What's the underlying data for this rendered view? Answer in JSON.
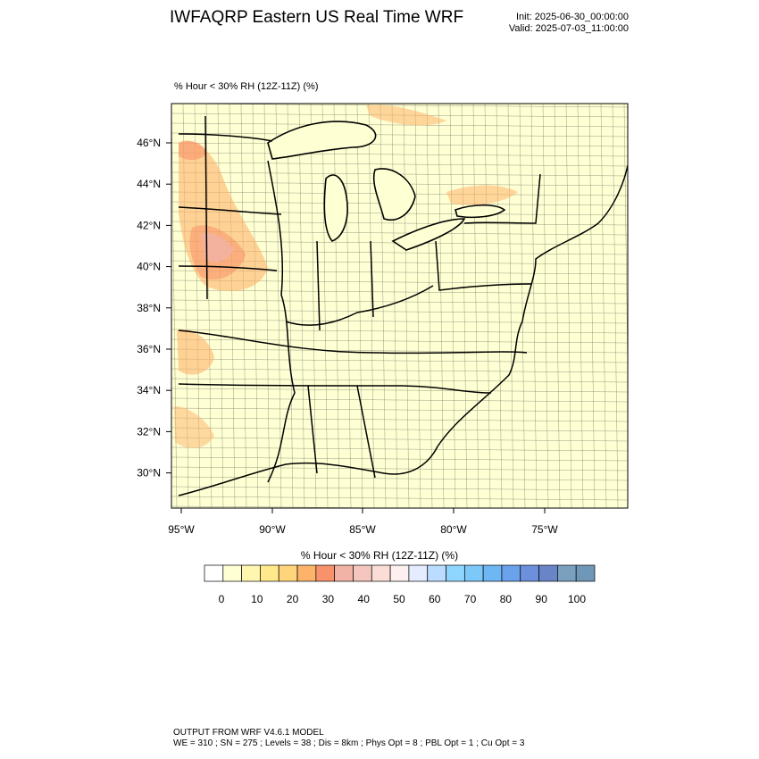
{
  "title": "IWFAQRP Eastern US Real Time WRF",
  "init_label": "Init: 2025-06-30_00:00:00",
  "valid_label": "Valid: 2025-07-03_11:00:00",
  "field_label": "% Hour < 30% RH (12Z-11Z)   (%)",
  "legend": {
    "title": "% Hour < 30% RH (12Z-11Z)  (%)",
    "tick_labels": [
      "0",
      "10",
      "20",
      "30",
      "40",
      "50",
      "60",
      "70",
      "80",
      "90",
      "100"
    ],
    "colors": [
      "#ffffff",
      "#ffffd4",
      "#fff6b0",
      "#ffe98c",
      "#ffd47a",
      "#fdb46a",
      "#f7926a",
      "#f1b3a6",
      "#f4c6bd",
      "#f9ddd6",
      "#fdf0ef",
      "#e5ecff",
      "#bcdcff",
      "#8fd6ff",
      "#7cc8f8",
      "#6fb6f4",
      "#6aa2ec",
      "#6c90dc",
      "#6a84c8",
      "#7aa0c0",
      "#6f98b8"
    ]
  },
  "lat_labels": [
    "46°N",
    "44°N",
    "42°N",
    "40°N",
    "38°N",
    "36°N",
    "34°N",
    "32°N",
    "30°N"
  ],
  "lon_labels": [
    "95°W",
    "90°W",
    "85°W",
    "80°W",
    "75°W"
  ],
  "map": {
    "land_color": "#ffffd4",
    "border_color": "#000000"
  },
  "footer_line1": "OUTPUT FROM WRF V4.6.1 MODEL",
  "footer_line2": "WE = 310 ; SN = 275 ; Levels = 38 ; Dis = 8km ; Phys Opt = 8 ; PBL Opt = 1 ; Cu Opt = 3"
}
